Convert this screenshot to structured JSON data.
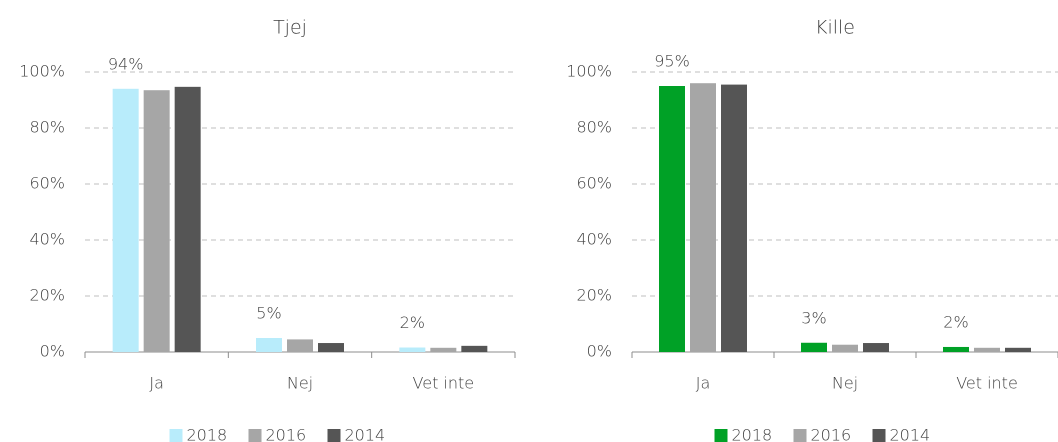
{
  "chart_data": [
    {
      "type": "bar",
      "title": "Tjej",
      "categories": [
        "Ja",
        "Nej",
        "Vet inte"
      ],
      "series": [
        {
          "name": "2018",
          "color": "#b8ecfb",
          "values": [
            94,
            5,
            1.6
          ],
          "value_labels": [
            "94%",
            "5%",
            "2%"
          ]
        },
        {
          "name": "2016",
          "color": "#a6a6a6",
          "values": [
            93.5,
            4.5,
            1.5
          ]
        },
        {
          "name": "2014",
          "color": "#555555",
          "values": [
            94.7,
            3.2,
            2.2
          ]
        }
      ],
      "ylim": [
        0,
        100
      ],
      "yticks": [
        {
          "value": 0,
          "label": "0%"
        },
        {
          "value": 20,
          "label": "20%"
        },
        {
          "value": 40,
          "label": "40%"
        },
        {
          "value": 60,
          "label": "60%"
        },
        {
          "value": 80,
          "label": "80%"
        },
        {
          "value": 100,
          "label": "100%"
        }
      ],
      "grid": true,
      "legend": "bottom"
    },
    {
      "type": "bar",
      "title": "Kille",
      "categories": [
        "Ja",
        "Nej",
        "Vet inte"
      ],
      "series": [
        {
          "name": "2018",
          "color": "#00a126",
          "values": [
            95,
            3.3,
            1.8
          ],
          "value_labels": [
            "95%",
            "3%",
            "2%"
          ]
        },
        {
          "name": "2016",
          "color": "#a6a6a6",
          "values": [
            96,
            2.6,
            1.5
          ]
        },
        {
          "name": "2014",
          "color": "#555555",
          "values": [
            95.5,
            3.2,
            1.5
          ]
        }
      ],
      "ylim": [
        0,
        100
      ],
      "yticks": [
        {
          "value": 0,
          "label": "0%"
        },
        {
          "value": 20,
          "label": "20%"
        },
        {
          "value": 40,
          "label": "40%"
        },
        {
          "value": 60,
          "label": "60%"
        },
        {
          "value": 80,
          "label": "80%"
        },
        {
          "value": 100,
          "label": "100%"
        }
      ],
      "grid": true,
      "legend": "bottom"
    }
  ]
}
